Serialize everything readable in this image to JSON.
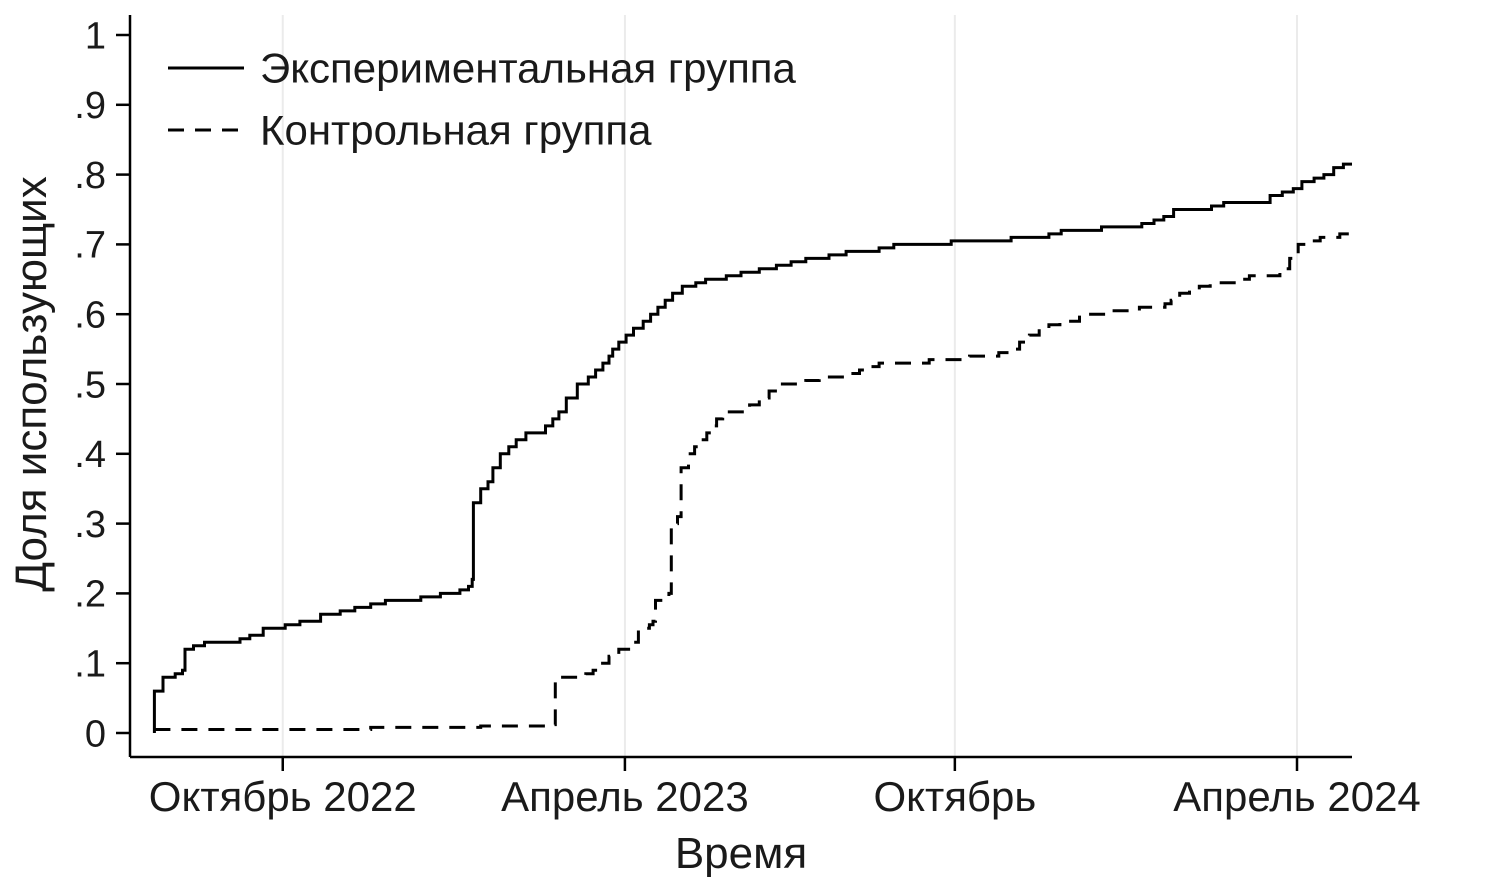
{
  "chart_data": {
    "type": "line",
    "subtype": "step",
    "title": "",
    "xlabel": "Время",
    "ylabel": "Доля  использующих",
    "ylim": [
      0,
      1
    ],
    "grid": "vertical-faint",
    "legend_position": "top-left-inside",
    "colors": {
      "line": "#000000",
      "grid": "#ebebeb",
      "text": "#1a1a1a",
      "background": "#ffffff"
    },
    "y_ticks": [
      {
        "v": 0.0,
        "label": "0"
      },
      {
        "v": 0.1,
        "label": ".1"
      },
      {
        "v": 0.2,
        "label": ".2"
      },
      {
        "v": 0.3,
        "label": ".3"
      },
      {
        "v": 0.4,
        "label": ".4"
      },
      {
        "v": 0.5,
        "label": ".5"
      },
      {
        "v": 0.6,
        "label": ".6"
      },
      {
        "v": 0.7,
        "label": ".7"
      },
      {
        "v": 0.8,
        "label": ".8"
      },
      {
        "v": 0.9,
        "label": ".9"
      },
      {
        "v": 1.0,
        "label": "1"
      }
    ],
    "x_ticks": [
      {
        "x": 0.125,
        "label": "Октябрь 2022"
      },
      {
        "x": 0.405,
        "label": "Апрель 2023"
      },
      {
        "x": 0.675,
        "label": "Октябрь"
      },
      {
        "x": 0.955,
        "label": "Апрель 2024"
      }
    ],
    "series": [
      {
        "key": "experimental",
        "name": "Экспериментальная группа",
        "style": "solid",
        "color": "#000000",
        "points": [
          [
            0.02,
            0
          ],
          [
            0.02,
            0.06
          ],
          [
            0.027,
            0.08
          ],
          [
            0.037,
            0.085
          ],
          [
            0.043,
            0.09
          ],
          [
            0.045,
            0.12
          ],
          [
            0.052,
            0.125
          ],
          [
            0.061,
            0.13
          ],
          [
            0.09,
            0.135
          ],
          [
            0.098,
            0.14
          ],
          [
            0.109,
            0.15
          ],
          [
            0.127,
            0.155
          ],
          [
            0.139,
            0.16
          ],
          [
            0.156,
            0.17
          ],
          [
            0.172,
            0.175
          ],
          [
            0.184,
            0.18
          ],
          [
            0.197,
            0.185
          ],
          [
            0.209,
            0.19
          ],
          [
            0.238,
            0.195
          ],
          [
            0.254,
            0.2
          ],
          [
            0.27,
            0.205
          ],
          [
            0.277,
            0.21
          ],
          [
            0.28,
            0.22
          ],
          [
            0.281,
            0.33
          ],
          [
            0.287,
            0.35
          ],
          [
            0.293,
            0.36
          ],
          [
            0.297,
            0.38
          ],
          [
            0.303,
            0.4
          ],
          [
            0.31,
            0.41
          ],
          [
            0.316,
            0.42
          ],
          [
            0.324,
            0.43
          ],
          [
            0.34,
            0.44
          ],
          [
            0.346,
            0.45
          ],
          [
            0.351,
            0.46
          ],
          [
            0.357,
            0.48
          ],
          [
            0.366,
            0.5
          ],
          [
            0.375,
            0.51
          ],
          [
            0.381,
            0.52
          ],
          [
            0.387,
            0.53
          ],
          [
            0.392,
            0.54
          ],
          [
            0.395,
            0.55
          ],
          [
            0.4,
            0.56
          ],
          [
            0.406,
            0.57
          ],
          [
            0.412,
            0.58
          ],
          [
            0.42,
            0.59
          ],
          [
            0.426,
            0.6
          ],
          [
            0.432,
            0.61
          ],
          [
            0.438,
            0.62
          ],
          [
            0.444,
            0.63
          ],
          [
            0.452,
            0.64
          ],
          [
            0.463,
            0.645
          ],
          [
            0.471,
            0.65
          ],
          [
            0.488,
            0.655
          ],
          [
            0.5,
            0.66
          ],
          [
            0.515,
            0.665
          ],
          [
            0.529,
            0.67
          ],
          [
            0.541,
            0.675
          ],
          [
            0.553,
            0.68
          ],
          [
            0.572,
            0.685
          ],
          [
            0.586,
            0.69
          ],
          [
            0.613,
            0.695
          ],
          [
            0.625,
            0.7
          ],
          [
            0.672,
            0.705
          ],
          [
            0.721,
            0.71
          ],
          [
            0.752,
            0.715
          ],
          [
            0.762,
            0.72
          ],
          [
            0.795,
            0.725
          ],
          [
            0.828,
            0.73
          ],
          [
            0.838,
            0.735
          ],
          [
            0.846,
            0.74
          ],
          [
            0.854,
            0.75
          ],
          [
            0.885,
            0.755
          ],
          [
            0.895,
            0.76
          ],
          [
            0.933,
            0.77
          ],
          [
            0.943,
            0.775
          ],
          [
            0.952,
            0.78
          ],
          [
            0.959,
            0.79
          ],
          [
            0.969,
            0.795
          ],
          [
            0.977,
            0.8
          ],
          [
            0.985,
            0.81
          ],
          [
            0.993,
            0.815
          ],
          [
            1.0,
            0.815
          ]
        ]
      },
      {
        "key": "control",
        "name": "Контрольная группа",
        "style": "dashed",
        "color": "#000000",
        "points": [
          [
            0.02,
            0.005
          ],
          [
            0.197,
            0.008
          ],
          [
            0.287,
            0.01
          ],
          [
            0.343,
            0.012
          ],
          [
            0.348,
            0.08
          ],
          [
            0.373,
            0.085
          ],
          [
            0.379,
            0.09
          ],
          [
            0.385,
            0.1
          ],
          [
            0.392,
            0.11
          ],
          [
            0.4,
            0.12
          ],
          [
            0.41,
            0.13
          ],
          [
            0.416,
            0.15
          ],
          [
            0.425,
            0.155
          ],
          [
            0.428,
            0.16
          ],
          [
            0.43,
            0.19
          ],
          [
            0.436,
            0.195
          ],
          [
            0.441,
            0.2
          ],
          [
            0.443,
            0.3
          ],
          [
            0.448,
            0.31
          ],
          [
            0.451,
            0.38
          ],
          [
            0.457,
            0.4
          ],
          [
            0.462,
            0.41
          ],
          [
            0.467,
            0.42
          ],
          [
            0.472,
            0.43
          ],
          [
            0.477,
            0.44
          ],
          [
            0.48,
            0.45
          ],
          [
            0.485,
            0.46
          ],
          [
            0.507,
            0.47
          ],
          [
            0.515,
            0.48
          ],
          [
            0.523,
            0.49
          ],
          [
            0.531,
            0.5
          ],
          [
            0.553,
            0.505
          ],
          [
            0.564,
            0.51
          ],
          [
            0.589,
            0.515
          ],
          [
            0.597,
            0.52
          ],
          [
            0.605,
            0.525
          ],
          [
            0.613,
            0.53
          ],
          [
            0.654,
            0.535
          ],
          [
            0.687,
            0.54
          ],
          [
            0.711,
            0.545
          ],
          [
            0.72,
            0.55
          ],
          [
            0.728,
            0.56
          ],
          [
            0.736,
            0.57
          ],
          [
            0.744,
            0.58
          ],
          [
            0.752,
            0.585
          ],
          [
            0.761,
            0.59
          ],
          [
            0.777,
            0.6
          ],
          [
            0.802,
            0.605
          ],
          [
            0.826,
            0.61
          ],
          [
            0.847,
            0.615
          ],
          [
            0.852,
            0.62
          ],
          [
            0.859,
            0.63
          ],
          [
            0.867,
            0.635
          ],
          [
            0.875,
            0.64
          ],
          [
            0.884,
            0.645
          ],
          [
            0.908,
            0.65
          ],
          [
            0.916,
            0.655
          ],
          [
            0.941,
            0.66
          ],
          [
            0.946,
            0.665
          ],
          [
            0.949,
            0.68
          ],
          [
            0.956,
            0.7
          ],
          [
            0.966,
            0.705
          ],
          [
            0.974,
            0.71
          ],
          [
            0.99,
            0.715
          ],
          [
            0.998,
            0.72
          ],
          [
            1.0,
            0.72
          ]
        ]
      }
    ]
  }
}
